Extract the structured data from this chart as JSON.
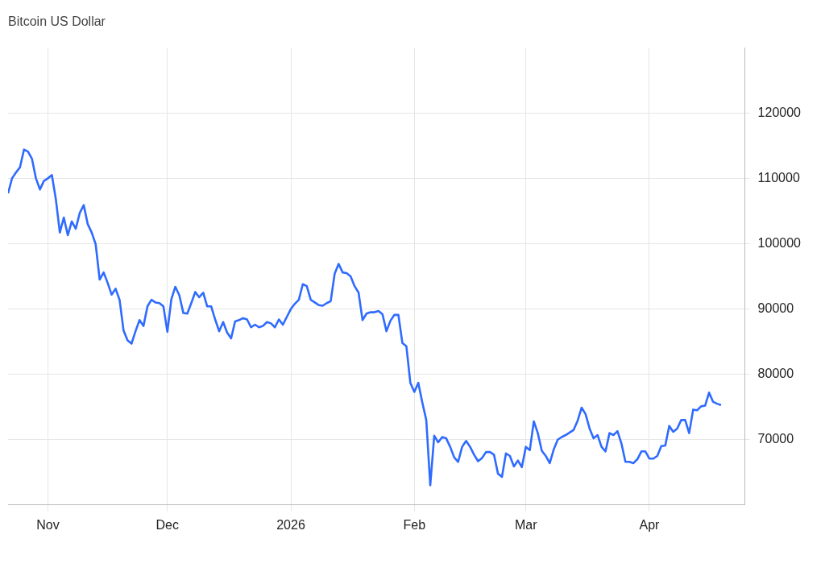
{
  "chart_data": {
    "type": "line",
    "title": "Bitcoin US Dollar",
    "xlim": [
      "2025-10-22",
      "2026-04-25"
    ],
    "xticks": [
      {
        "value": "2025-11-01",
        "label": "Nov"
      },
      {
        "value": "2025-12-01",
        "label": "Dec"
      },
      {
        "value": "2026-01-01",
        "label": "2026"
      },
      {
        "value": "2026-02-01",
        "label": "Feb"
      },
      {
        "value": "2026-03-01",
        "label": "Mar"
      },
      {
        "value": "2026-04-01",
        "label": "Apr"
      }
    ],
    "ylim": [
      60000,
      130000
    ],
    "yticks": [
      70000,
      80000,
      90000,
      100000,
      110000,
      120000
    ],
    "grid": true,
    "legend": false,
    "marker": "none",
    "line_style": "solid",
    "series": [
      {
        "color": "#2f6bff",
        "x": [
          "2025-10-22",
          "2025-10-23",
          "2025-10-24",
          "2025-10-25",
          "2025-10-26",
          "2025-10-27",
          "2025-10-28",
          "2025-10-29",
          "2025-10-30",
          "2025-10-31",
          "2025-11-01",
          "2025-11-02",
          "2025-11-03",
          "2025-11-04",
          "2025-11-05",
          "2025-11-06",
          "2025-11-07",
          "2025-11-08",
          "2025-11-09",
          "2025-11-10",
          "2025-11-11",
          "2025-11-12",
          "2025-11-13",
          "2025-11-14",
          "2025-11-15",
          "2025-11-16",
          "2025-11-17",
          "2025-11-18",
          "2025-11-19",
          "2025-11-20",
          "2025-11-21",
          "2025-11-22",
          "2025-11-23",
          "2025-11-24",
          "2025-11-25",
          "2025-11-26",
          "2025-11-27",
          "2025-11-28",
          "2025-11-29",
          "2025-11-30",
          "2025-12-01",
          "2025-12-02",
          "2025-12-03",
          "2025-12-04",
          "2025-12-05",
          "2025-12-06",
          "2025-12-07",
          "2025-12-08",
          "2025-12-09",
          "2025-12-10",
          "2025-12-11",
          "2025-12-12",
          "2025-12-13",
          "2025-12-14",
          "2025-12-15",
          "2025-12-16",
          "2025-12-17",
          "2025-12-18",
          "2025-12-19",
          "2025-12-20",
          "2025-12-21",
          "2025-12-22",
          "2025-12-23",
          "2025-12-24",
          "2025-12-25",
          "2025-12-26",
          "2025-12-27",
          "2025-12-28",
          "2025-12-29",
          "2025-12-30",
          "2025-12-31",
          "2026-01-01",
          "2026-01-02",
          "2026-01-03",
          "2026-01-04",
          "2026-01-05",
          "2026-01-06",
          "2026-01-07",
          "2026-01-08",
          "2026-01-09",
          "2026-01-10",
          "2026-01-11",
          "2026-01-12",
          "2026-01-13",
          "2026-01-14",
          "2026-01-15",
          "2026-01-16",
          "2026-01-17",
          "2026-01-18",
          "2026-01-19",
          "2026-01-20",
          "2026-01-21",
          "2026-01-22",
          "2026-01-23",
          "2026-01-24",
          "2026-01-25",
          "2026-01-26",
          "2026-01-27",
          "2026-01-28",
          "2026-01-29",
          "2026-01-30",
          "2026-01-31",
          "2026-02-01",
          "2026-02-02",
          "2026-02-03",
          "2026-02-04",
          "2026-02-05",
          "2026-02-06",
          "2026-02-07",
          "2026-02-08",
          "2026-02-09",
          "2026-02-10",
          "2026-02-11",
          "2026-02-12",
          "2026-02-13",
          "2026-02-14",
          "2026-02-15",
          "2026-02-16",
          "2026-02-17",
          "2026-02-18",
          "2026-02-19",
          "2026-02-20",
          "2026-02-21",
          "2026-02-22",
          "2026-02-23",
          "2026-02-24",
          "2026-02-25",
          "2026-02-26",
          "2026-02-27",
          "2026-02-28",
          "2026-03-01",
          "2026-03-02",
          "2026-03-03",
          "2026-03-04",
          "2026-03-05",
          "2026-03-06",
          "2026-03-07",
          "2026-03-08",
          "2026-03-09",
          "2026-03-10",
          "2026-03-11",
          "2026-03-12",
          "2026-03-13",
          "2026-03-14",
          "2026-03-15",
          "2026-03-16",
          "2026-03-17",
          "2026-03-18",
          "2026-03-19",
          "2026-03-20",
          "2026-03-21",
          "2026-03-22",
          "2026-03-23",
          "2026-03-24",
          "2026-03-25",
          "2026-03-26",
          "2026-03-27",
          "2026-03-28",
          "2026-03-29",
          "2026-03-30",
          "2026-03-31",
          "2026-04-01",
          "2026-04-02",
          "2026-04-03",
          "2026-04-04",
          "2026-04-05",
          "2026-04-06",
          "2026-04-07",
          "2026-04-08",
          "2026-04-09",
          "2026-04-10",
          "2026-04-11",
          "2026-04-12",
          "2026-04-13",
          "2026-04-14",
          "2026-04-15",
          "2026-04-16",
          "2026-04-17",
          "2026-04-18",
          "2026-04-19"
        ],
        "values": [
          107700,
          110000,
          110900,
          111700,
          114400,
          114100,
          113000,
          110000,
          108300,
          109600,
          110000,
          110500,
          106800,
          101700,
          104000,
          101300,
          103400,
          102300,
          104700,
          105900,
          103000,
          101700,
          99900,
          94500,
          95600,
          94000,
          92200,
          93100,
          91400,
          86700,
          85200,
          84700,
          86600,
          88300,
          87400,
          90400,
          91400,
          91000,
          90900,
          90400,
          86500,
          91500,
          93400,
          92100,
          89400,
          89300,
          90900,
          92600,
          91800,
          92500,
          90400,
          90400,
          88400,
          86600,
          88000,
          86400,
          85500,
          88100,
          88300,
          88600,
          88400,
          87200,
          87600,
          87200,
          87400,
          88000,
          87800,
          87200,
          88400,
          87600,
          88800,
          90000,
          90800,
          91400,
          93800,
          93500,
          91400,
          91000,
          90600,
          90500,
          90900,
          91200,
          95400,
          96900,
          95600,
          95500,
          95000,
          93500,
          92500,
          88300,
          89300,
          89500,
          89500,
          89700,
          89200,
          86600,
          88200,
          89100,
          89100,
          84800,
          84300,
          78700,
          77300,
          78700,
          75700,
          73000,
          63000,
          70600,
          69600,
          70400,
          70200,
          68900,
          67300,
          66600,
          68900,
          69800,
          68900,
          67700,
          66700,
          67200,
          68100,
          68100,
          67700,
          64800,
          64300,
          67900,
          67500,
          65900,
          66800,
          65800,
          68900,
          68400,
          72800,
          71000,
          68300,
          67500,
          66400,
          68500,
          70000,
          70400,
          70700,
          71100,
          71500,
          72900,
          74900,
          73900,
          71700,
          70200,
          70700,
          68900,
          68200,
          71000,
          70700,
          71300,
          69400,
          66600,
          66600,
          66400,
          67000,
          68200,
          68200,
          67100,
          67100,
          67500,
          69000,
          69100,
          72100,
          71200,
          71700,
          73000,
          73000,
          71000,
          74600,
          74500,
          75100,
          75200,
          77200,
          75800,
          75500,
          75300
        ]
      }
    ]
  }
}
